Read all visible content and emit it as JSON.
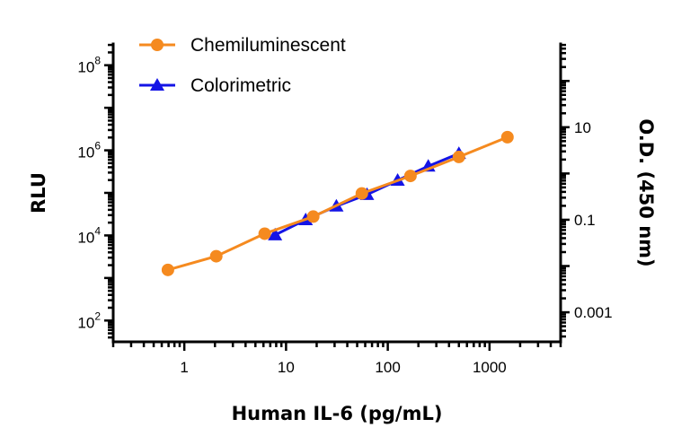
{
  "chart_data": {
    "type": "line",
    "xlabel": "Human IL-6 (pg/mL)",
    "ylabel": "RLU",
    "y2label": "O.D. (450 nm)",
    "x_scale": "log",
    "y_scale": "log",
    "y2_scale": "log",
    "xlim": [
      0.2,
      5000
    ],
    "ylim": [
      31.6,
      316000000
    ],
    "y2lim": [
      0.00023,
      630
    ],
    "x_ticks": [
      {
        "value": 1,
        "label": "1"
      },
      {
        "value": 10,
        "label": "10"
      },
      {
        "value": 100,
        "label": "100"
      },
      {
        "value": 1000,
        "label": "1000"
      }
    ],
    "y_ticks": [
      {
        "value": 100,
        "base": "10",
        "exp": "2"
      },
      {
        "value": 10000,
        "base": "10",
        "exp": "4"
      },
      {
        "value": 1000000,
        "base": "10",
        "exp": "6"
      },
      {
        "value": 100000000,
        "base": "10",
        "exp": "8"
      }
    ],
    "y2_ticks": [
      {
        "value": 0.001,
        "label": "0.001"
      },
      {
        "value": 0.1,
        "label": "0.1"
      },
      {
        "value": 10,
        "label": "10"
      }
    ],
    "grid": false,
    "legend_position": "top-left",
    "series": [
      {
        "name": "Chemiluminescent",
        "axis": "left",
        "marker": "circle",
        "color": "#F58A1F",
        "x": [
          0.69,
          2.06,
          6.17,
          18.5,
          55.6,
          167,
          500,
          1500
        ],
        "y": [
          1550,
          3250,
          11000,
          27700,
          97000,
          250000,
          700000,
          2040000
        ]
      },
      {
        "name": "Colorimetric",
        "axis": "right",
        "marker": "triangle",
        "color": "#1414E6",
        "x": [
          7.8,
          15.6,
          31.25,
          62.5,
          125,
          250,
          500
        ],
        "y": [
          0.047,
          0.1,
          0.197,
          0.35,
          0.71,
          1.44,
          2.7
        ]
      }
    ]
  }
}
